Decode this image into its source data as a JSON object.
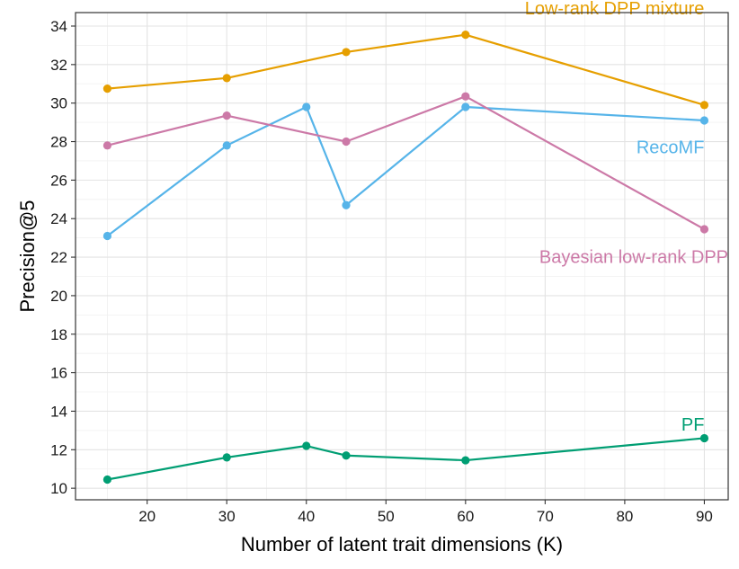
{
  "chart_data": {
    "type": "line",
    "title": "",
    "xlabel": "Number of latent trait dimensions (K)",
    "ylabel": "Precision@5",
    "xlim": [
      11,
      93
    ],
    "ylim": [
      9.4,
      34.7
    ],
    "xticks": [
      20,
      30,
      40,
      50,
      60,
      70,
      80,
      90
    ],
    "yticks": [
      10,
      12,
      14,
      16,
      18,
      20,
      22,
      24,
      26,
      28,
      30,
      32,
      34
    ],
    "grid": true,
    "series": [
      {
        "name": "Low-rank DPP mixture",
        "color": "#E69F00",
        "x": [
          15,
          30,
          45,
          60,
          90
        ],
        "y": [
          30.75,
          31.3,
          32.65,
          33.55,
          29.9
        ],
        "label_at": [
          90,
          34.6
        ],
        "label_anchor": "end"
      },
      {
        "name": "RecoMF",
        "color": "#56B4E9",
        "x": [
          15,
          30,
          40,
          45,
          60,
          90
        ],
        "y": [
          23.1,
          27.8,
          29.8,
          24.7,
          29.8,
          29.1
        ],
        "label_at": [
          90,
          27.4
        ],
        "label_anchor": "end"
      },
      {
        "name": "Bayesian low-rank DPP",
        "color": "#CC79A7",
        "x": [
          15,
          30,
          45,
          60,
          90
        ],
        "y": [
          27.8,
          29.35,
          28.0,
          30.35,
          23.45
        ],
        "label_at": [
          93,
          21.7
        ],
        "label_anchor": "end"
      },
      {
        "name": "PF",
        "color": "#009E73",
        "x": [
          15,
          30,
          40,
          45,
          60,
          90
        ],
        "y": [
          10.45,
          11.6,
          12.2,
          11.7,
          11.45,
          12.6
        ],
        "label_at": [
          90,
          13.0
        ],
        "label_anchor": "end"
      }
    ]
  }
}
